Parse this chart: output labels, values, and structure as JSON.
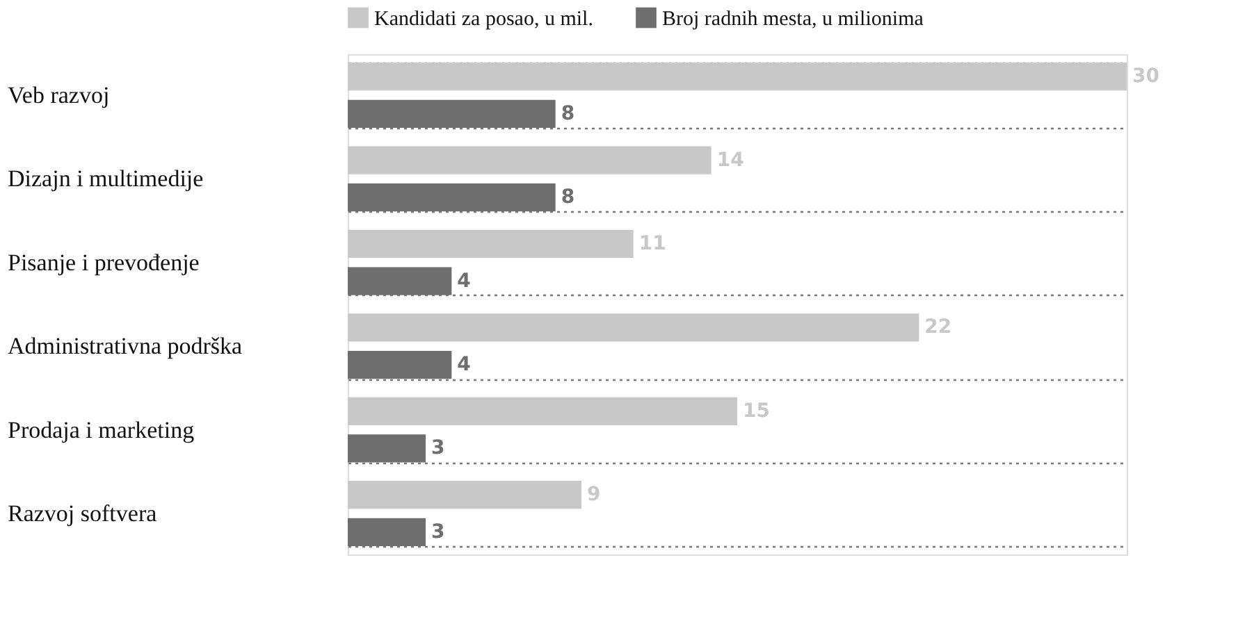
{
  "chart_data": {
    "type": "bar",
    "orientation": "horizontal",
    "categories": [
      "Veb razvoj",
      "Dizajn i multimedije",
      "Pisanje i prevođenje",
      "Administrativna podrška",
      "Prodaja i marketing",
      "Razvoj softvera"
    ],
    "series": [
      {
        "name": "Kandidati za posao, u mil.",
        "color": "#c8c8c8",
        "values": [
          30,
          14,
          11,
          22,
          15,
          9
        ]
      },
      {
        "name": "Broj radnih mesta, u milionima",
        "color": "#6e6e6e",
        "values": [
          8,
          8,
          4,
          4,
          3,
          3
        ]
      }
    ],
    "data_labels": true,
    "legend": "top left",
    "grid": "y",
    "tick_labels": "y"
  }
}
